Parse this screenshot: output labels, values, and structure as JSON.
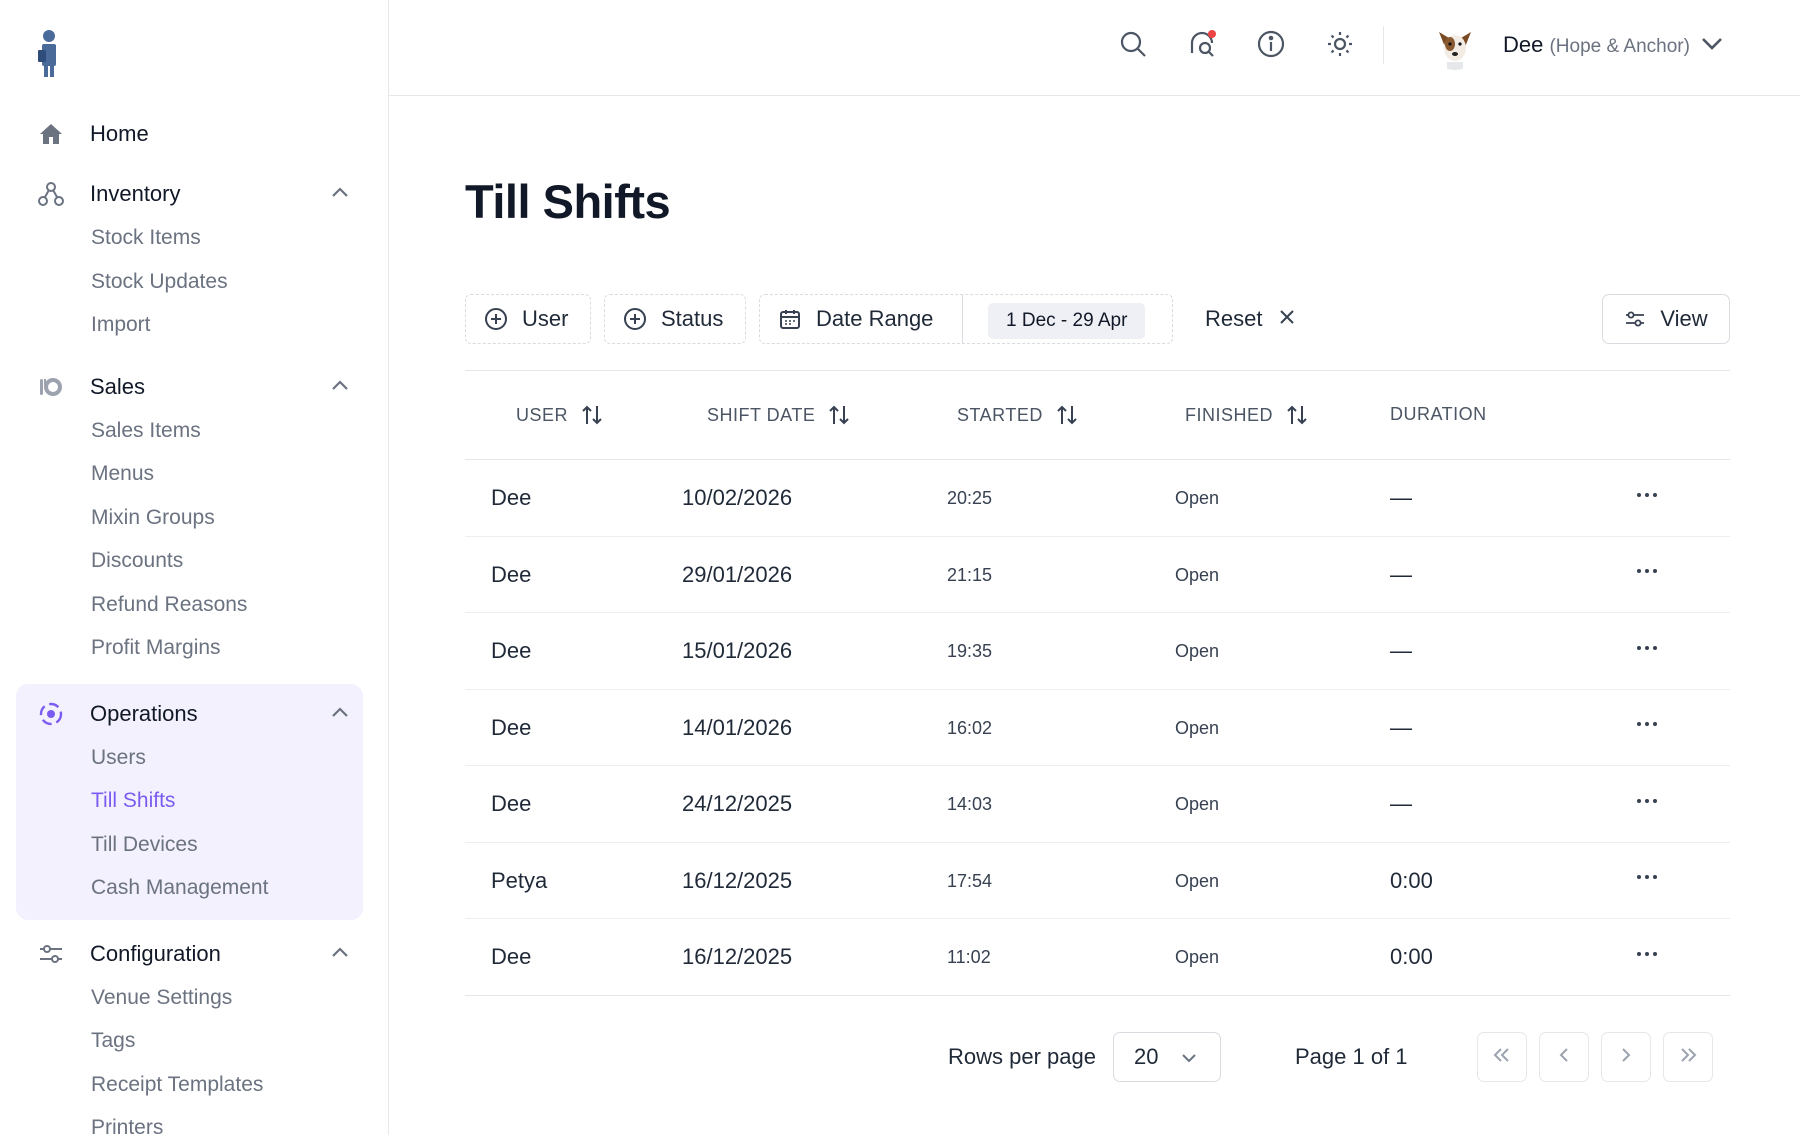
{
  "colors": {
    "accent": "#7c5cf0",
    "active_group_bg": "#f3f1fe",
    "notification_dot": "#ef4444"
  },
  "sidebar": {
    "logo_icon": "person-logo-icon",
    "home": {
      "label": "Home",
      "icon": "home-icon"
    },
    "groups": [
      {
        "label": "Inventory",
        "icon": "inventory-icon",
        "expanded": true,
        "items": [
          "Stock Items",
          "Stock Updates",
          "Import"
        ]
      },
      {
        "label": "Sales",
        "icon": "sales-icon",
        "expanded": true,
        "items": [
          "Sales Items",
          "Menus",
          "Mixin Groups",
          "Discounts",
          "Refund Reasons",
          "Profit Margins"
        ]
      },
      {
        "label": "Operations",
        "icon": "operations-icon",
        "expanded": true,
        "active": true,
        "items": [
          "Users",
          "Till Shifts",
          "Till Devices",
          "Cash Management"
        ],
        "current": "Till Shifts"
      },
      {
        "label": "Configuration",
        "icon": "sliders-icon",
        "expanded": true,
        "items": [
          "Venue Settings",
          "Tags",
          "Receipt Templates",
          "Printers"
        ]
      }
    ]
  },
  "topbar": {
    "icons": [
      "search-icon",
      "chat-icon",
      "info-icon",
      "sun-icon"
    ],
    "user": {
      "name": "Dee",
      "venue": "(Hope & Anchor)"
    }
  },
  "page": {
    "title": "Till Shifts",
    "filters": {
      "user": "User",
      "status": "Status",
      "date_range": "Date Range",
      "date_value": "1 Dec - 29 Apr",
      "reset": "Reset",
      "view": "View"
    },
    "table": {
      "headers": {
        "user": "USER",
        "shift_date": "SHIFT DATE",
        "started": "STARTED",
        "finished": "FINISHED",
        "duration": "DURATION"
      },
      "rows": [
        {
          "user": "Dee",
          "shift_date": "10/02/2026",
          "started": "20:25",
          "finished": "Open",
          "duration": "—"
        },
        {
          "user": "Dee",
          "shift_date": "29/01/2026",
          "started": "21:15",
          "finished": "Open",
          "duration": "—"
        },
        {
          "user": "Dee",
          "shift_date": "15/01/2026",
          "started": "19:35",
          "finished": "Open",
          "duration": "—"
        },
        {
          "user": "Dee",
          "shift_date": "14/01/2026",
          "started": "16:02",
          "finished": "Open",
          "duration": "—"
        },
        {
          "user": "Dee",
          "shift_date": "24/12/2025",
          "started": "14:03",
          "finished": "Open",
          "duration": "—"
        },
        {
          "user": "Petya",
          "shift_date": "16/12/2025",
          "started": "17:54",
          "finished": "Open",
          "duration": "0:00"
        },
        {
          "user": "Dee",
          "shift_date": "16/12/2025",
          "started": "11:02",
          "finished": "Open",
          "duration": "0:00"
        }
      ]
    },
    "pagination": {
      "rows_per_page_label": "Rows per page",
      "rows_per_page": "20",
      "page_info": "Page 1 of 1"
    }
  }
}
